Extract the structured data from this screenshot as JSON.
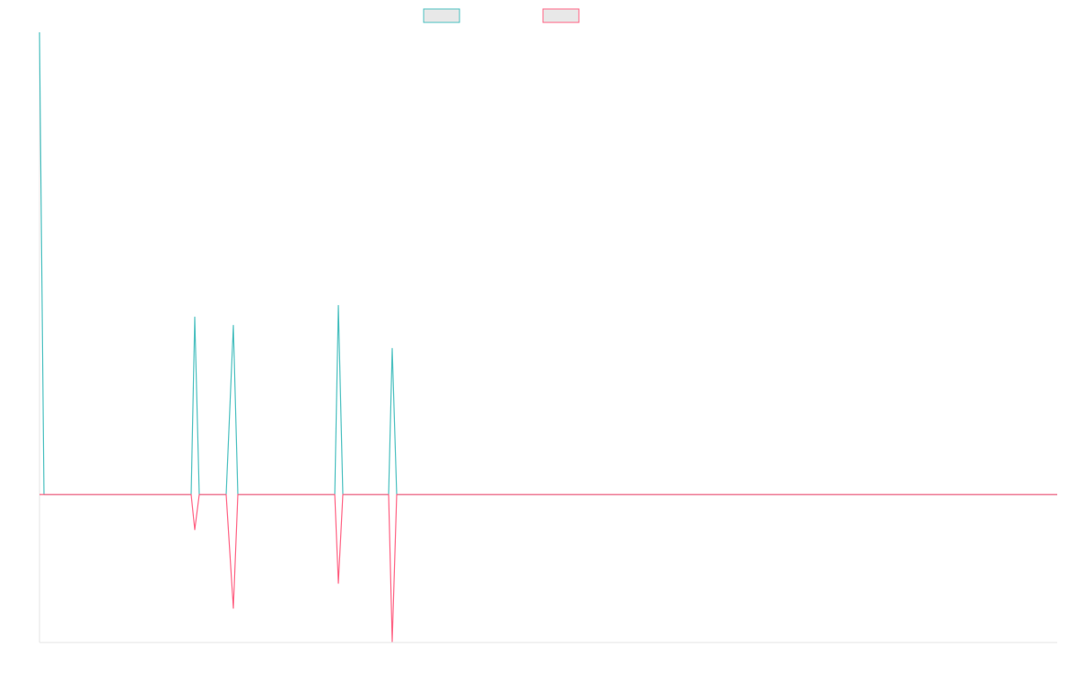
{
  "chart_data": {
    "type": "line",
    "x": [
      0,
      5,
      169,
      173,
      178,
      208,
      216,
      221,
      329,
      333,
      338,
      389,
      393,
      398,
      1134
    ],
    "series": [
      {
        "color": "#4bc0c0",
        "values": [
          100,
          0,
          0,
          38.4,
          0,
          0,
          36.6,
          0,
          0,
          40.9,
          0,
          0,
          31.6,
          0,
          0
        ]
      },
      {
        "color": "#ff6384",
        "values": [
          0,
          0,
          0,
          -7.6,
          0,
          0,
          -24.6,
          0,
          0,
          -19.2,
          0,
          0,
          -31.8,
          0,
          0
        ]
      }
    ],
    "xlim": [
      0,
      1134
    ],
    "ylim": [
      -32,
      100
    ]
  }
}
